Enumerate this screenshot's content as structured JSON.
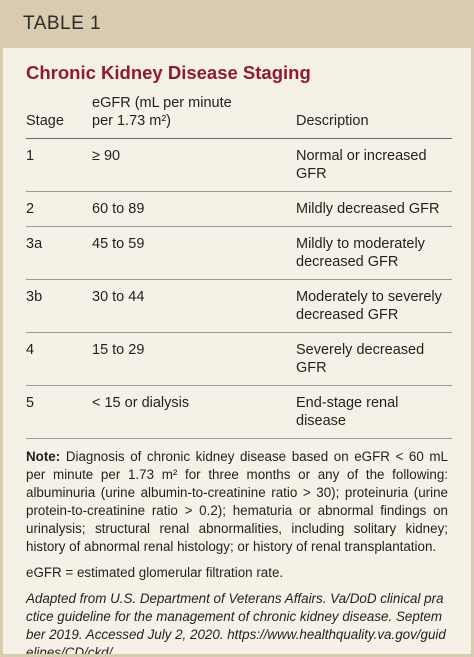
{
  "header": {
    "label": "TABLE 1"
  },
  "title": "Chronic Kidney Disease Staging",
  "table": {
    "columns": [
      "Stage",
      "eGFR (mL per minute per 1.73 m²)",
      "Description"
    ],
    "rows": [
      [
        "1",
        "≥ 90",
        "Normal or increased GFR"
      ],
      [
        "2",
        "60 to 89",
        "Mildly decreased GFR"
      ],
      [
        "3a",
        "45 to 59",
        "Mildly to moderately decreased GFR"
      ],
      [
        "3b",
        "30 to 44",
        "Moderately to severely decreased GFR"
      ],
      [
        "4",
        "15 to 29",
        "Severely decreased GFR"
      ],
      [
        "5",
        "< 15 or dialysis",
        "End-stage renal disease"
      ]
    ]
  },
  "note": {
    "label": "Note:",
    "text": "Diagnosis of chronic kidney disease based on eGFR < 60 mL per minute per 1.73 m² for three months or any of the following: albuminuria (urine albumin-to-creatinine ratio > 30); proteinuria (urine protein-to-creatinine ratio > 0.2); hematuria or abnormal findings on urinalysis; structural renal abnormalities, including solitary kidney; history of abnormal renal histology; or history of renal transplantation."
  },
  "abbreviation": "eGFR = estimated glomerular filtration rate.",
  "source": "Adapted from U.S. Department of Veterans Affairs. Va/DoD clinical practice guideline for the management of chronic kidney disease. September 2019. Accessed July 2, 2020. https://www.healthquality.va.gov/guidelines/CD/ckd/"
}
